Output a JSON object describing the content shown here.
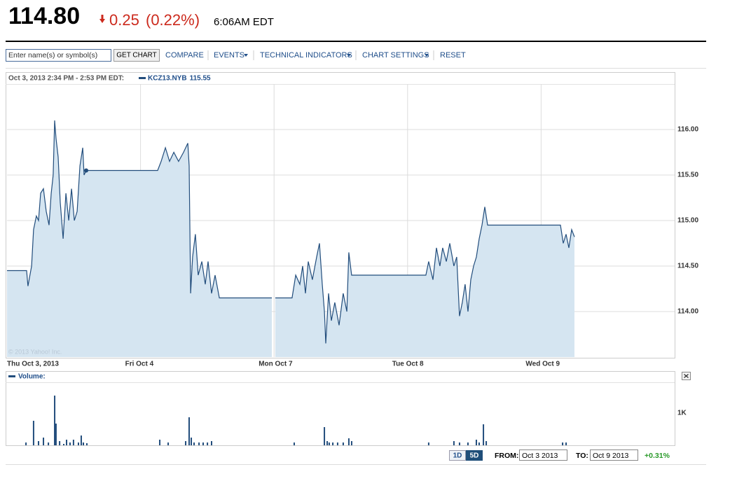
{
  "header": {
    "price": "114.80",
    "change": "0.25",
    "change_pct": "(0.22%)",
    "time": "6:06AM EDT"
  },
  "toolbar": {
    "search_placeholder": "Enter name(s) or symbol(s)",
    "get_chart": "GET CHART",
    "compare": "COMPARE",
    "events": "EVENTS",
    "technical_indicators": "TECHNICAL INDICATORS",
    "chart_settings": "CHART SETTINGS",
    "reset": "RESET"
  },
  "chart_data": [
    {
      "type": "area",
      "legend_time": "Oct 3, 2013 2:34 PM - 2:53 PM EDT:",
      "color": "#224d7c",
      "fill": "#d5e5f1",
      "watermark": "© 2013 Yahoo! Inc.",
      "series": [
        {
          "name": "KCZ13.NYB",
          "color": "#224d7c",
          "x": [
            0,
            0.147,
            0.157,
            0.184,
            0.199,
            0.22,
            0.236,
            0.252,
            0.273,
            0.294,
            0.315,
            0.331,
            0.346,
            0.357,
            0.367,
            0.383,
            0.399,
            0.42,
            0.441,
            0.462,
            0.483,
            0.504,
            0.525,
            0.546,
            0.567,
            0.577,
            0.593,
            1.128,
            1.154,
            1.186,
            1.217,
            1.249,
            1.285,
            1.322,
            1.354,
            1.364,
            1.375,
            1.39,
            1.411,
            1.432,
            1.459,
            1.485,
            1.506,
            1.532,
            1.558,
            1.59,
            1.983,
            1.995,
            2.009,
            2.135,
            2.162,
            2.193,
            2.214,
            2.235,
            2.256,
            2.287,
            2.319,
            2.34,
            2.361,
            2.377,
            2.387,
            2.408,
            2.429,
            2.455,
            2.487,
            2.518,
            2.545,
            2.56,
            2.581,
            2.608,
            3.137,
            3.158,
            3.19,
            3.216,
            3.242,
            3.263,
            3.29,
            3.316,
            3.347,
            3.368,
            3.389,
            3.41,
            3.431,
            3.452,
            3.473,
            3.494,
            3.515,
            3.536,
            3.557,
            3.578,
            3.599,
            4.145,
            4.166,
            4.187,
            4.208,
            4.229,
            4.25
          ],
          "values": [
            114.45,
            114.45,
            114.28,
            114.5,
            114.9,
            115.05,
            115.0,
            115.3,
            115.35,
            115.1,
            114.95,
            115.3,
            115.5,
            116.1,
            115.9,
            115.7,
            115.2,
            114.8,
            115.3,
            115.0,
            115.35,
            115.0,
            115.1,
            115.6,
            115.8,
            115.5,
            115.55,
            115.55,
            115.65,
            115.8,
            115.65,
            115.75,
            115.65,
            115.75,
            115.85,
            115.6,
            114.2,
            114.6,
            114.85,
            114.4,
            114.55,
            114.3,
            114.55,
            114.2,
            114.4,
            114.15,
            114.15,
            null,
            114.15,
            114.15,
            114.4,
            114.3,
            114.5,
            114.2,
            114.55,
            114.35,
            114.6,
            114.75,
            114.3,
            114.0,
            113.65,
            114.2,
            113.9,
            114.1,
            113.85,
            114.2,
            114.0,
            114.65,
            114.4,
            114.4,
            114.4,
            114.55,
            114.35,
            114.7,
            114.5,
            114.7,
            114.55,
            114.75,
            114.5,
            114.6,
            113.95,
            114.1,
            114.3,
            114.0,
            114.35,
            114.5,
            114.6,
            114.8,
            114.95,
            115.15,
            114.95,
            114.95,
            114.75,
            114.85,
            114.7,
            114.9,
            114.82
          ]
        }
      ],
      "hover": {
        "x": 0.593,
        "value": 115.55
      },
      "xlim": [
        0,
        5
      ],
      "ylim": [
        113.5,
        116.5
      ],
      "xticks": [
        {
          "value": 0,
          "label": "Thu Oct 3, 2013"
        },
        {
          "value": 1,
          "label": "Fri Oct 4"
        },
        {
          "value": 2,
          "label": "Mon Oct 7"
        },
        {
          "value": 3,
          "label": "Tue Oct 8"
        },
        {
          "value": 4,
          "label": "Wed Oct 9"
        }
      ],
      "yticks": [
        {
          "value": 114,
          "label": "114.00"
        },
        {
          "value": 114.5,
          "label": "114.50"
        },
        {
          "value": 115,
          "label": "115.00"
        },
        {
          "value": 115.5,
          "label": "115.50"
        },
        {
          "value": 116,
          "label": "116.00"
        }
      ],
      "grid": true
    },
    {
      "type": "bar",
      "title": "Volume:",
      "color": "#224d7c",
      "x": [
        0.142,
        0.199,
        0.236,
        0.273,
        0.31,
        0.357,
        0.367,
        0.394,
        0.425,
        0.446,
        0.472,
        0.498,
        0.535,
        0.556,
        0.572,
        0.598,
        1.144,
        1.207,
        1.338,
        1.364,
        1.38,
        1.401,
        1.438,
        1.469,
        1.501,
        1.532,
        2.151,
        2.377,
        2.398,
        2.413,
        2.44,
        2.476,
        2.518,
        2.56,
        2.581,
        3.158,
        3.347,
        3.389,
        3.452,
        3.515,
        3.536,
        3.568,
        3.589,
        4.161,
        4.187
      ],
      "values": [
        87,
        761,
        130,
        239,
        87,
        1543,
        674,
        130,
        43,
        174,
        87,
        174,
        87,
        304,
        87,
        65,
        174,
        87,
        130,
        870,
        239,
        87,
        87,
        87,
        87,
        130,
        87,
        565,
        130,
        87,
        87,
        87,
        87,
        217,
        130,
        87,
        130,
        87,
        87,
        174,
        87,
        652,
        130,
        87,
        87
      ],
      "xlim": [
        0,
        5
      ],
      "ylim": [
        0,
        1900
      ],
      "xticks": [
        0,
        1,
        2,
        3,
        4
      ],
      "yticks": [
        {
          "value": 1000,
          "label": "1K"
        }
      ],
      "grid": true
    }
  ],
  "footer": {
    "range_1d": "1D",
    "range_5d": "5D",
    "from_label": "FROM:",
    "from_value": "Oct 3 2013",
    "to_label": "TO:",
    "to_value": "Oct 9 2013",
    "change": "+0.31%"
  }
}
